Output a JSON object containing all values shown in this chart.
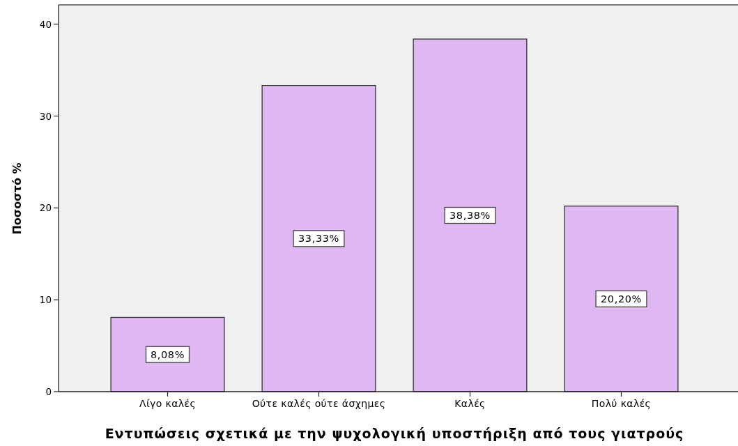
{
  "chart_data": {
    "type": "bar",
    "xlabel": "Εντυπώσεις σχετικά με την ψυχολογική υποστήριξη από τους γιατρούς",
    "ylabel": "Ποσοστό %",
    "categories": [
      "Λίγο καλές",
      "Ούτε καλές ούτε άσχημες",
      "Καλές",
      "Πολύ καλές"
    ],
    "values": [
      8.08,
      33.33,
      38.38,
      20.2
    ],
    "value_labels": [
      "8,08%",
      "33,33%",
      "38,38%",
      "20,20%"
    ],
    "color": "#dfb7f2",
    "ylim": [
      0,
      42.1
    ],
    "yticks": [
      0,
      10,
      20,
      30,
      40
    ],
    "grid": false
  }
}
